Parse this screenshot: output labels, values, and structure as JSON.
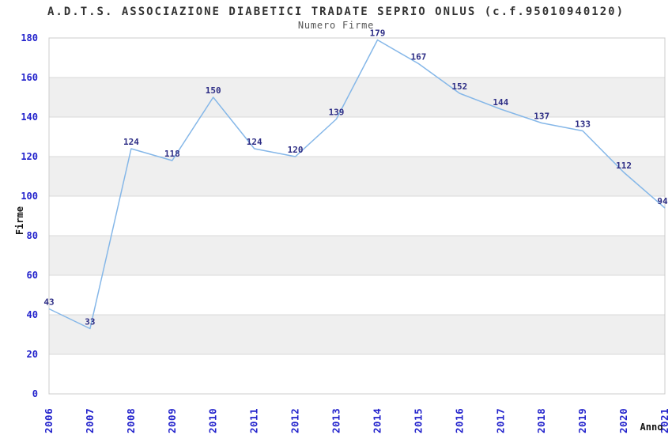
{
  "chart_data": {
    "type": "line",
    "title": "A.D.T.S. ASSOCIAZIONE DIABETICI TRADATE SEPRIO ONLUS (c.f.95010940120)",
    "subtitle": "Numero Firme",
    "xlabel": "Anno",
    "ylabel": "Firme",
    "categories": [
      "2006",
      "2007",
      "2008",
      "2009",
      "2010",
      "2011",
      "2012",
      "2013",
      "2014",
      "2015",
      "2016",
      "2017",
      "2018",
      "2019",
      "2020",
      "2021"
    ],
    "values": [
      43,
      33,
      124,
      118,
      150,
      124,
      120,
      139,
      179,
      167,
      152,
      144,
      137,
      133,
      112,
      94
    ],
    "ylim": [
      0,
      180
    ],
    "ytick_step": 20,
    "grid": "horizontal-bands",
    "legend": "none",
    "data_labels": "above-points",
    "colors": {
      "line": "#85b7e8",
      "tick_label": "#2222cc",
      "data_label": "#2d2d85",
      "band_fill": "#efefef",
      "grid_line": "#d9d9d9",
      "plot_border": "#cccccc",
      "title": "#333333",
      "subtitle": "#555555",
      "axis_title": "#111111",
      "background": "#ffffff"
    }
  }
}
